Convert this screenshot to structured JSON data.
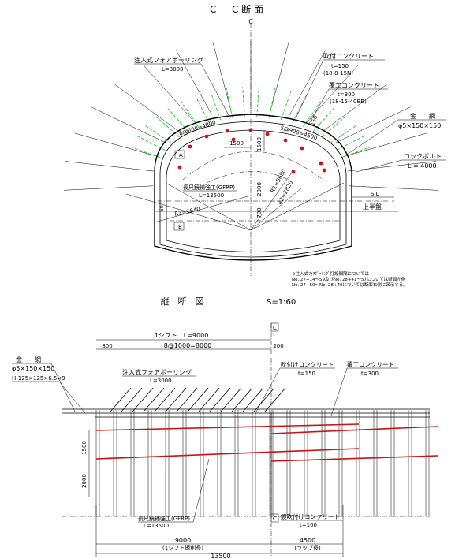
{
  "section": {
    "title": "C － C 断 面",
    "centerline_mark": "C",
    "labels": {
      "forepoling": "注入式フォアポーリング",
      "forepoling_L": "L=3000",
      "shotcrete": "吹付コンクリート",
      "shotcrete_t": "t=150",
      "shotcrete_spec": "(18-8-15N)",
      "lining": "覆工コンクリート",
      "lining_t": "t=300",
      "lining_spec": "(18-15-40BB)",
      "wire_mesh": "金　　網",
      "wire_mesh_spec": "φ5×150×150",
      "rockbolt": "ロックボルト",
      "rockbolt_L": "L = 4000",
      "sl": "S.L",
      "upper_bench": "上半盤",
      "reinforce": "長尺鏡補強工(GFRP)",
      "reinforce_L": "L=13500",
      "dim_left_pitch": "8@600=4800",
      "dim_right_pitch": "5@900=4500",
      "dim_1500_h": "1500",
      "dim_1500_v": "1500",
      "dim_2000": "2000",
      "dim_700": "700",
      "dim_r1": "R1=5680",
      "dim_r2": "R2=2820",
      "dim_r3": "R3=1640",
      "dim_150": "150",
      "dim_50": "50",
      "marker_a": "A",
      "marker_b": "B"
    },
    "note_lines": [
      "※注入式ﾌｫｱﾎﾟｰﾘﾝｸﾞ打設間隔については",
      "No. 27+14～59及びNo. 28+41～57については断面左側",
      "No. 27+60～No. 28+40については断面右側に図示する。"
    ]
  },
  "longitudinal": {
    "title": "縦　断　図",
    "scale": "S=1:60",
    "centerline_mark": "C",
    "labels": {
      "shift": "1シフト　L=9000",
      "dim_800": "800",
      "dim_8at1000": "8@1000=8000",
      "dim_200": "200",
      "wire_mesh": "金　　網",
      "wire_mesh_spec": "φ5×150×150",
      "steel": "H-125×125×6.5×9",
      "forepoling": "注入式フォアポーリング",
      "forepoling_L": "L=3000",
      "shotcrete": "吹付けコンクリート",
      "shotcrete_t": "t=150",
      "lining": "覆工コンクリート",
      "lining_t": "t=300",
      "dim_1500": "1500",
      "dim_2000": "2000",
      "reinforce": "長尺鏡補強工(GFRP)",
      "reinforce_L": "L=13500",
      "face_shotcrete": "鏡吹付けコンクリート",
      "face_shotcrete_t": "t=100",
      "dim_9000": "9000",
      "dim_9000_note": "(1シフト掘削長)",
      "dim_4500": "4500",
      "dim_4500_note": "(ラップ長)",
      "dim_13500": "13500"
    }
  },
  "colors": {
    "forepoling": "#2bd02b",
    "reinforcement": "#c81414"
  }
}
